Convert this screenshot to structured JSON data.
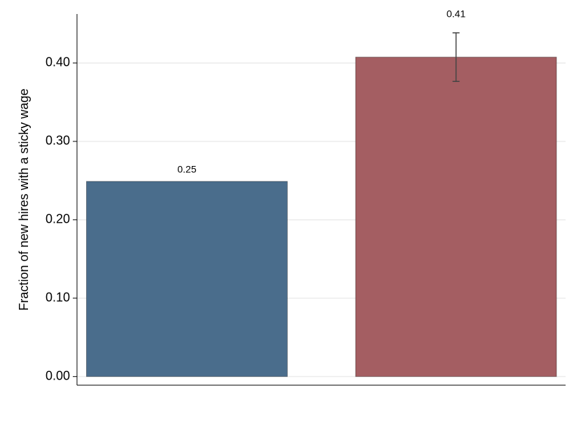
{
  "chart_data": {
    "type": "bar",
    "y_label": "Fraction of new hires with a sticky wage",
    "categories": [
      null,
      null
    ],
    "values": [
      0.249,
      0.4075
    ],
    "errors": [
      null,
      0.031
    ],
    "value_labels": [
      "0.25",
      "0.41"
    ],
    "colors": [
      "#4a6d8c",
      "#a45e62"
    ],
    "ylim": [
      -0.011,
      0.4625
    ],
    "yticks": [
      {
        "value": 0,
        "label": "0.00"
      },
      {
        "value": 0.1,
        "label": "0.10"
      },
      {
        "value": 0.2,
        "label": "0.20"
      },
      {
        "value": 0.3,
        "label": "0.30"
      },
      {
        "value": 0.4,
        "label": "0.40"
      }
    ],
    "grid": true
  }
}
